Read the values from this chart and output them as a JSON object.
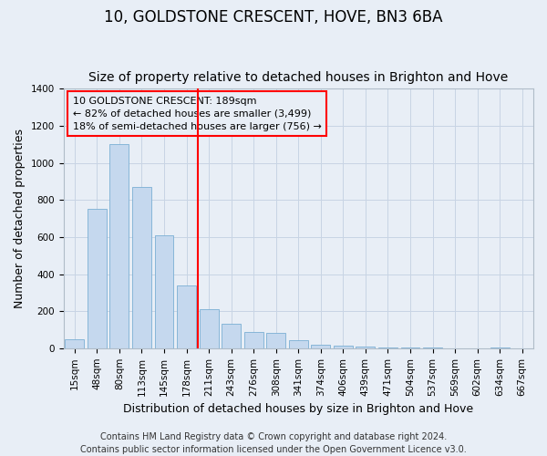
{
  "title": "10, GOLDSTONE CRESCENT, HOVE, BN3 6BA",
  "subtitle": "Size of property relative to detached houses in Brighton and Hove",
  "xlabel": "Distribution of detached houses by size in Brighton and Hove",
  "ylabel": "Number of detached properties",
  "categories": [
    "15sqm",
    "48sqm",
    "80sqm",
    "113sqm",
    "145sqm",
    "178sqm",
    "211sqm",
    "243sqm",
    "276sqm",
    "308sqm",
    "341sqm",
    "374sqm",
    "406sqm",
    "439sqm",
    "471sqm",
    "504sqm",
    "537sqm",
    "569sqm",
    "602sqm",
    "634sqm",
    "667sqm"
  ],
  "values": [
    50,
    750,
    1100,
    870,
    610,
    340,
    210,
    130,
    90,
    85,
    45,
    20,
    15,
    10,
    3,
    3,
    5,
    0,
    0,
    5,
    0
  ],
  "bar_color": "#c5d8ee",
  "bar_edge_color": "#7aafd4",
  "grid_color": "#c8d4e4",
  "background_color": "#e8eef6",
  "vline_color": "red",
  "annotation_line1": "10 GOLDSTONE CRESCENT: 189sqm",
  "annotation_line2": "← 82% of detached houses are smaller (3,499)",
  "annotation_line3": "18% of semi-detached houses are larger (756) →",
  "footer1": "Contains HM Land Registry data © Crown copyright and database right 2024.",
  "footer2": "Contains public sector information licensed under the Open Government Licence v3.0.",
  "ylim": [
    0,
    1400
  ],
  "yticks": [
    0,
    200,
    400,
    600,
    800,
    1000,
    1200,
    1400
  ],
  "title_fontsize": 12,
  "subtitle_fontsize": 10,
  "axis_label_fontsize": 9,
  "tick_fontsize": 7.5,
  "annotation_fontsize": 8,
  "footer_fontsize": 7
}
